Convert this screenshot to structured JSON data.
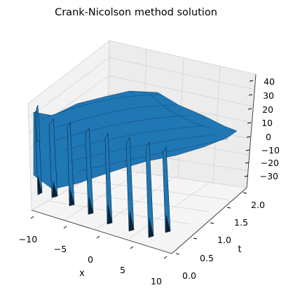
{
  "figure": {
    "title": "Crank-Nicolson method solution",
    "xlabel": "x",
    "ylabel": "t",
    "zlabel": ""
  },
  "chart_data": {
    "type": "surface3d",
    "title": "Crank-Nicolson method solution",
    "xlabel": "x",
    "ylabel": "t",
    "zlabel": "",
    "x_ticks": [
      -10,
      -5,
      0,
      5,
      10
    ],
    "t_ticks": [
      0.0,
      0.5,
      1.0,
      1.5,
      2.0
    ],
    "z_ticks": [
      -30,
      -20,
      -10,
      0,
      10,
      20,
      30,
      40
    ],
    "x_tick_labels": [
      "−10",
      "−5",
      "0",
      "5",
      "10"
    ],
    "t_tick_labels": [
      "0.0",
      "0.5",
      "1.0",
      "1.5",
      "2.0"
    ],
    "z_tick_labels": [
      "−30",
      "−20",
      "−10",
      "0",
      "10",
      "20",
      "30",
      "40"
    ],
    "xlim": [
      -10,
      10
    ],
    "tlim": [
      0,
      2
    ],
    "zlim": [
      -35,
      40
    ],
    "grid": true,
    "surface_color": "#1f77b4",
    "surface_description": "Oscillating spikes near t=0 (about 8 troughs reaching about -35 and peaks up to about 30 along x), decaying to a smooth surface near 0 for larger t",
    "spike_x_positions": [
      -9.2,
      -7,
      -4.8,
      -2.4,
      0,
      2.4,
      4.8,
      7
    ],
    "t_initial": 0.0,
    "t_final": 2.0
  }
}
